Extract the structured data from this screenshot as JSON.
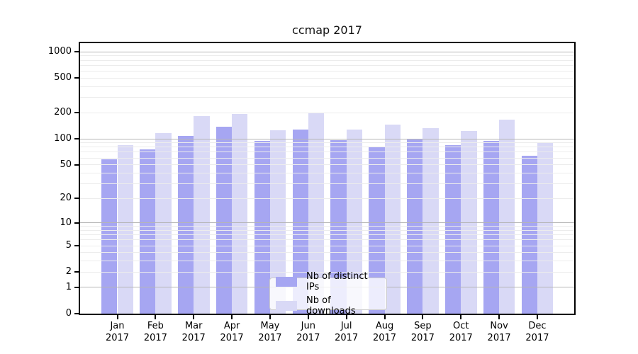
{
  "title": "ccmap 2017",
  "chart_data": {
    "type": "bar",
    "title": "ccmap 2017",
    "xlabel": "",
    "ylabel": "",
    "yscale": "symlog (log1p)",
    "grid": "on, minor log gridlines, drawn above bars",
    "legend_position": "bottom-center",
    "ylim": [
      0,
      1260
    ],
    "yticks": [
      0,
      1,
      2,
      5,
      10,
      20,
      50,
      100,
      200,
      500,
      1000
    ],
    "categories": [
      "Jan",
      "Feb",
      "Mar",
      "Apr",
      "May",
      "Jun",
      "Jul",
      "Aug",
      "Sep",
      "Oct",
      "Nov",
      "Dec"
    ],
    "year": "2017",
    "series": [
      {
        "name": "Nb of distinct IPs",
        "color": "#a6a6f2",
        "values": [
          58,
          75,
          107,
          138,
          95,
          128,
          97,
          82,
          100,
          85,
          95,
          63
        ]
      },
      {
        "name": "Nb of downloads",
        "color": "#d9d9f6",
        "values": [
          85,
          117,
          182,
          195,
          126,
          197,
          128,
          147,
          133,
          123,
          167,
          90
        ]
      }
    ]
  }
}
